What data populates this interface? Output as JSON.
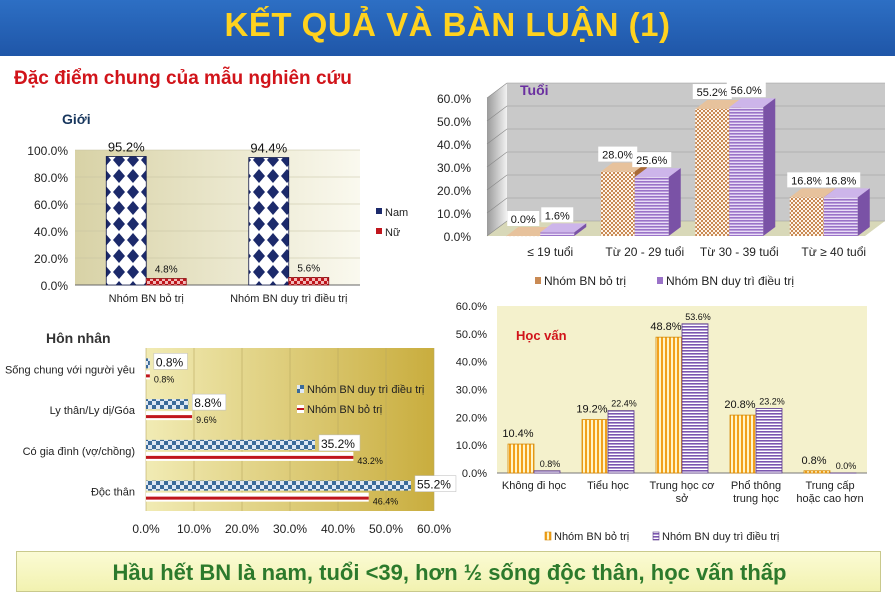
{
  "header": {
    "title": "KẾT QUẢ VÀ BÀN LUẬN (1)"
  },
  "subtitle": "Đặc điểm chung của mẫu nghiên cứu",
  "footer": {
    "text": "Hầu hết BN là nam, tuổi <39, hơn ½ sống độc thân, học vấn thấp"
  },
  "colors": {
    "header_bg": "#1f56a8",
    "header_text": "#ffd21e",
    "subtitle": "#d1141a",
    "footer_text": "#2c7a2c",
    "navy": "#1c2a6b",
    "red": "#c0161d",
    "brown": "#c98a54",
    "purple": "#9a72c8",
    "orange": "#f2a11c",
    "teal": "#3b6b9a"
  },
  "chart_data": [
    {
      "id": "gioi",
      "type": "bar",
      "title": "Giới",
      "categories": [
        "Nhóm BN bỏ trị",
        "Nhóm BN duy trì điều trị"
      ],
      "series": [
        {
          "name": "Nam",
          "values": [
            95.2,
            94.4
          ],
          "labels": [
            "95.2%",
            "94.4%"
          ]
        },
        {
          "name": "Nữ",
          "values": [
            4.8,
            5.6
          ],
          "labels": [
            "4.8%",
            "5.6%"
          ]
        }
      ],
      "ylim": [
        0,
        100
      ],
      "yticks": [
        "0.0%",
        "20.0%",
        "40.0%",
        "60.0%",
        "80.0%",
        "100.0%"
      ],
      "legend": "right"
    },
    {
      "id": "tuoi",
      "type": "bar",
      "title": "Tuổi",
      "categories": [
        "≤ 19 tuổi",
        "Từ 20 - 29 tuổi",
        "Từ 30 - 39 tuổi",
        "Từ  ≥ 40 tuổi"
      ],
      "series": [
        {
          "name": "Nhóm BN bỏ trị",
          "values": [
            0.0,
            28.0,
            55.2,
            16.8
          ],
          "labels": [
            "0.0%",
            "28.0%",
            "55.2%",
            "16.8%"
          ]
        },
        {
          "name": "Nhóm BN duy trì điều trị",
          "values": [
            1.6,
            25.6,
            56.0,
            16.8
          ],
          "labels": [
            "1.6%",
            "25.6%",
            "56.0%",
            "16.8%"
          ]
        }
      ],
      "ylim": [
        0,
        60
      ],
      "yticks": [
        "0.0%",
        "10.0%",
        "20.0%",
        "30.0%",
        "40.0%",
        "50.0%",
        "60.0%"
      ],
      "legend": "bottom"
    },
    {
      "id": "honnhan",
      "type": "bar",
      "orientation": "horizontal",
      "title": "Hôn nhân",
      "categories": [
        "Sống chung với người yêu",
        "Ly thân/Ly dị/Góa",
        "Có gia đình (vợ/chồng)",
        "Độc thân"
      ],
      "series": [
        {
          "name": "Nhóm BN duy trì điều trị",
          "values": [
            0.8,
            8.8,
            35.2,
            55.2
          ],
          "labels": [
            "0.8%",
            "8.8%",
            "35.2%",
            "55.2%"
          ]
        },
        {
          "name": "Nhóm BN bỏ trị",
          "values": [
            0.8,
            9.6,
            43.2,
            46.4
          ],
          "labels": [
            "0.8%",
            "9.6%",
            "43.2%",
            "46.4%"
          ]
        }
      ],
      "xlim": [
        0,
        60
      ],
      "xticks": [
        "0.0%",
        "10.0%",
        "20.0%",
        "30.0%",
        "40.0%",
        "50.0%",
        "60.0%"
      ],
      "legend": "top-right"
    },
    {
      "id": "hocvan",
      "type": "bar",
      "title": "Học vấn",
      "categories": [
        [
          "Không đi học"
        ],
        [
          "Tiểu học"
        ],
        [
          "Trung học cơ",
          "sở"
        ],
        [
          "Phổ thông",
          "trung học"
        ],
        [
          "Trung cấp",
          "hoặc cao hơn"
        ]
      ],
      "series": [
        {
          "name": "Nhóm BN bỏ trị",
          "values": [
            10.4,
            19.2,
            48.8,
            20.8,
            0.8
          ],
          "labels": [
            "10.4%",
            "19.2%",
            "48.8%",
            "20.8%",
            "0.8%"
          ]
        },
        {
          "name": "Nhóm BN duy trì điều trị",
          "values": [
            0.8,
            22.4,
            53.6,
            23.2,
            0.0
          ],
          "labels": [
            "0.8%",
            "22.4%",
            "53.6%",
            "23.2%",
            "0.0%"
          ]
        }
      ],
      "ylim": [
        0,
        60
      ],
      "yticks": [
        "0.0%",
        "10.0%",
        "20.0%",
        "30.0%",
        "40.0%",
        "50.0%",
        "60.0%"
      ],
      "legend": "bottom"
    }
  ]
}
